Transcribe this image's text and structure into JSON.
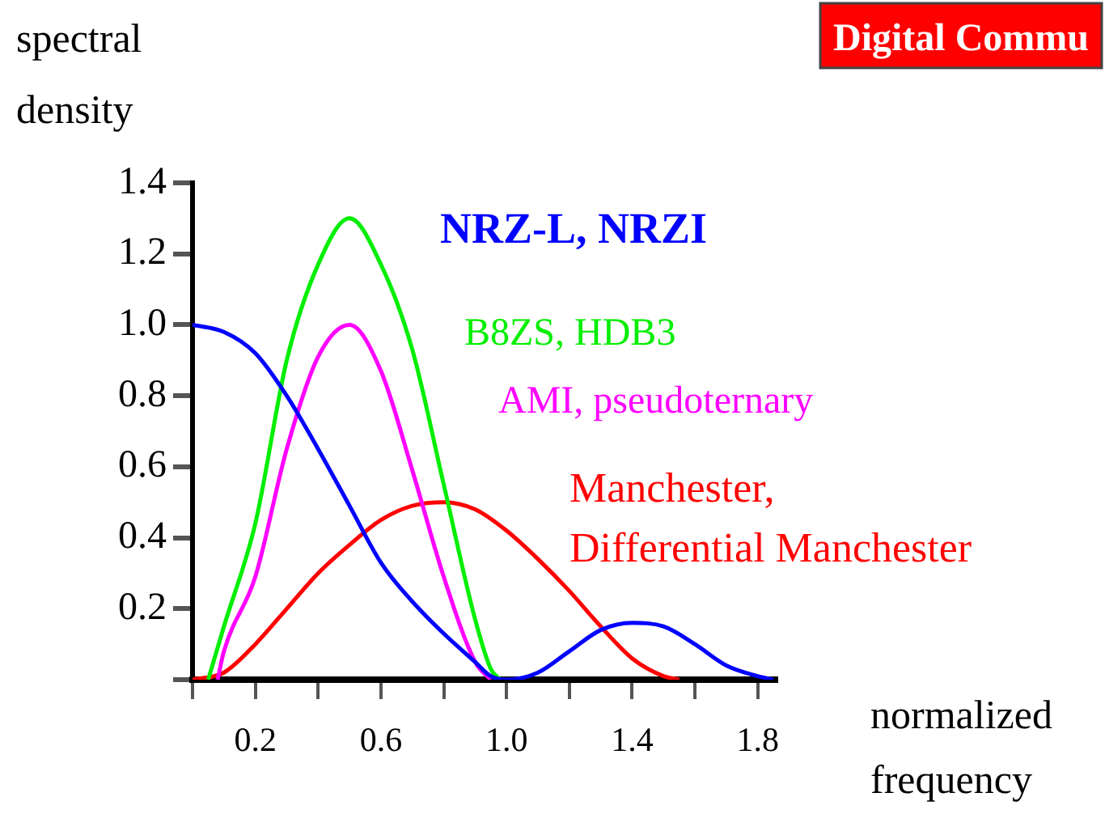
{
  "chart_data": {
    "type": "line",
    "xlabel": "normalized frequency",
    "ylabel": "spectral density",
    "annotations": [
      "Digital Commu"
    ],
    "xlim": [
      0,
      1.86
    ],
    "xticks": [
      {
        "value": 0,
        "label": null
      },
      0.2,
      {
        "value": 0.4,
        "label": null
      },
      0.6,
      {
        "value": 0.8,
        "label": null
      },
      {
        "value": 1,
        "label": "1.0"
      },
      {
        "value": 1.2,
        "label": null
      },
      1.4,
      {
        "value": 1.6,
        "label": null
      },
      1.8
    ],
    "ylim": [
      0,
      1.4
    ],
    "yticks": [
      {
        "value": 0,
        "label": null
      },
      0.2,
      0.4,
      0.6,
      0.8,
      {
        "value": 1,
        "label": "1.0"
      },
      1.2,
      1.4
    ],
    "grid": false,
    "legend": false,
    "marker": "none",
    "line_style": "solid",
    "series": [
      {
        "name": "NRZ-L, NRZI",
        "color": "#0000ff",
        "x": [
          0,
          0.1,
          0.2,
          0.3,
          0.4,
          0.5,
          0.6,
          0.7,
          0.8,
          0.9,
          0.95,
          1.0,
          1.1,
          1.2,
          1.3,
          1.4,
          1.5,
          1.6,
          1.7,
          1.8,
          1.85
        ],
        "values": [
          1.0,
          0.98,
          0.92,
          0.8,
          0.65,
          0.49,
          0.33,
          0.22,
          0.13,
          0.05,
          0.01,
          0,
          0.02,
          0.08,
          0.14,
          0.16,
          0.15,
          0.1,
          0.04,
          0.01,
          0
        ]
      },
      {
        "name": "B8ZS, HDB3",
        "color": "#00ee00",
        "x": [
          0.05,
          0.1,
          0.2,
          0.3,
          0.4,
          0.5,
          0.6,
          0.7,
          0.8,
          0.9,
          0.95,
          0.98
        ],
        "values": [
          0,
          0.15,
          0.44,
          0.9,
          1.17,
          1.3,
          1.17,
          0.93,
          0.55,
          0.17,
          0.03,
          0
        ]
      },
      {
        "name": "AMI, pseudoternary",
        "color": "#ff00ff",
        "x": [
          0.08,
          0.1,
          0.2,
          0.3,
          0.4,
          0.5,
          0.6,
          0.7,
          0.8,
          0.9,
          0.95
        ],
        "values": [
          0,
          0.08,
          0.29,
          0.65,
          0.91,
          1.0,
          0.87,
          0.59,
          0.29,
          0.05,
          0
        ]
      },
      {
        "name": "Manchester, Differential Manchester",
        "color": "#ff0000",
        "x": [
          0,
          0.1,
          0.2,
          0.3,
          0.4,
          0.5,
          0.6,
          0.7,
          0.8,
          0.9,
          1.0,
          1.1,
          1.2,
          1.3,
          1.4,
          1.5,
          1.55
        ],
        "values": [
          0,
          0.02,
          0.1,
          0.2,
          0.3,
          0.38,
          0.45,
          0.49,
          0.5,
          0.48,
          0.42,
          0.34,
          0.25,
          0.15,
          0.06,
          0.01,
          0
        ]
      }
    ]
  }
}
